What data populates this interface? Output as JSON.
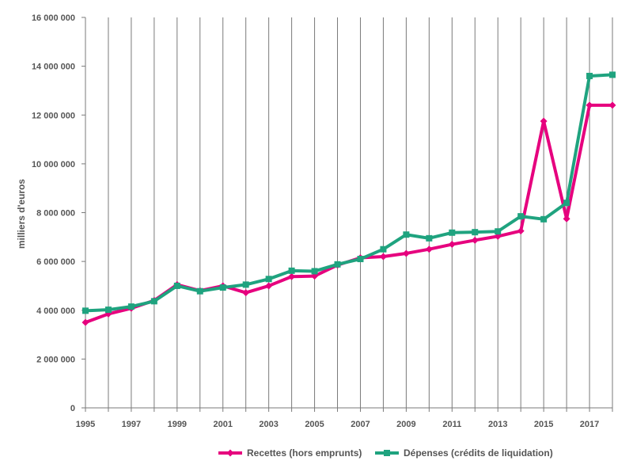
{
  "chart_data": {
    "type": "line",
    "ylabel": "milliers d'euros",
    "ylim": [
      0,
      16000000
    ],
    "y_ticks": [
      0,
      2000000,
      4000000,
      6000000,
      8000000,
      10000000,
      12000000,
      14000000,
      16000000
    ],
    "y_tick_labels": [
      "0",
      "2 000 000",
      "4 000 000",
      "6 000 000",
      "8 000 000",
      "10 000 000",
      "12 000 000",
      "14 000 000",
      "16 000 000"
    ],
    "x": [
      1995,
      1996,
      1997,
      1998,
      1999,
      2000,
      2001,
      2002,
      2003,
      2004,
      2005,
      2006,
      2007,
      2008,
      2009,
      2010,
      2011,
      2012,
      2013,
      2014,
      2015,
      2016,
      2017,
      2018
    ],
    "x_tick_labels": [
      "1995",
      "1997",
      "1999",
      "2001",
      "2003",
      "2005",
      "2007",
      "2009",
      "2011",
      "2013",
      "2015",
      "2017"
    ],
    "grid": "vertical",
    "legend_position": "bottom",
    "series": [
      {
        "name": "Recettes (hors emprunts)",
        "color": "#e6007e",
        "marker": "diamond",
        "values": [
          3500000,
          3850000,
          4080000,
          4400000,
          5050000,
          4800000,
          5000000,
          4720000,
          5000000,
          5380000,
          5400000,
          5850000,
          6150000,
          6200000,
          6330000,
          6500000,
          6700000,
          6870000,
          7030000,
          7250000,
          11750000,
          7750000,
          12400000,
          12400000
        ]
      },
      {
        "name": "Dépenses (crédits de liquidation)",
        "color": "#1fa37f",
        "marker": "square",
        "values": [
          3980000,
          4020000,
          4150000,
          4370000,
          5000000,
          4780000,
          4930000,
          5050000,
          5280000,
          5620000,
          5600000,
          5880000,
          6100000,
          6500000,
          7100000,
          6950000,
          7180000,
          7200000,
          7230000,
          7850000,
          7730000,
          8400000,
          13600000,
          13650000
        ]
      }
    ]
  }
}
